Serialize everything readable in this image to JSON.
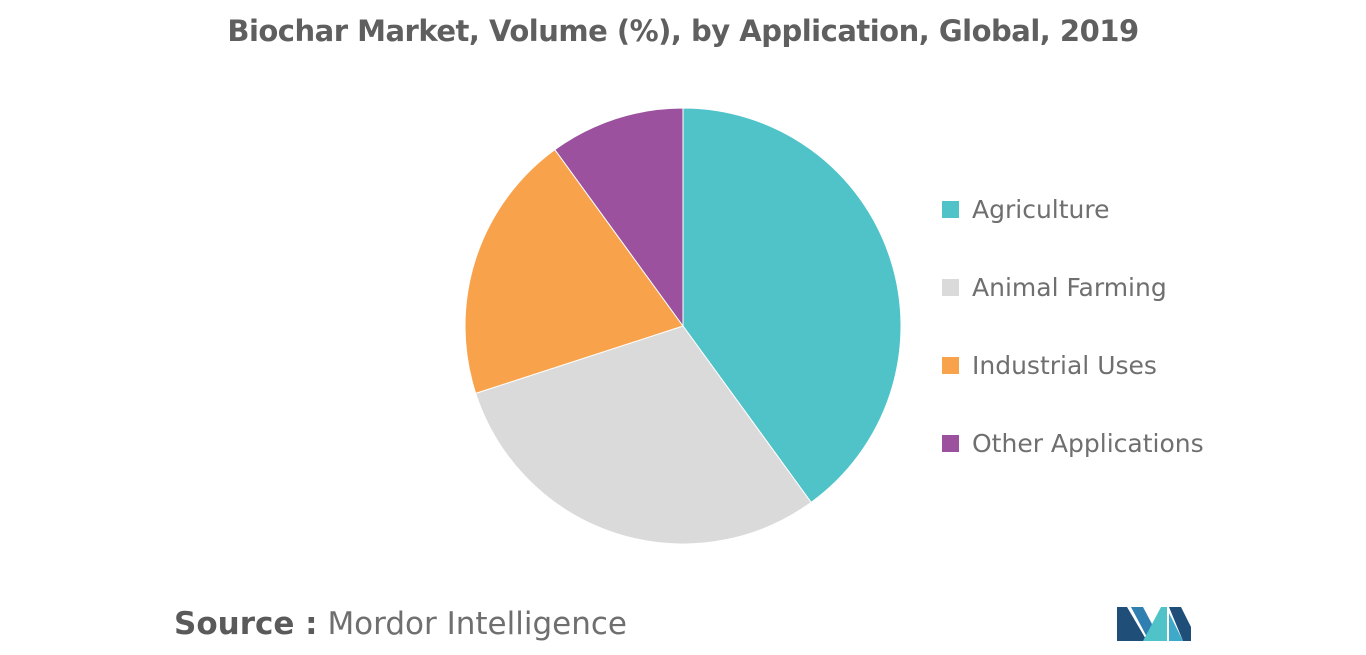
{
  "header": {
    "title": "Biochar Market, Volume (%), by Application, Global, 2019"
  },
  "chart_data": {
    "type": "pie",
    "title": "Biochar Market, Volume (%), by Application, Global, 2019",
    "start_angle_deg": 0,
    "direction": "clockwise",
    "legend_position": "right",
    "slices": [
      {
        "label": "Agriculture",
        "value": 40,
        "color": "#50c3c9"
      },
      {
        "label": "Animal Farming",
        "value": 30,
        "color": "#dadada"
      },
      {
        "label": "Industrial Uses",
        "value": 20,
        "color": "#f9a24c"
      },
      {
        "label": "Other Applications",
        "value": 10,
        "color": "#9b519e"
      }
    ]
  },
  "footer": {
    "source_prefix": "Source :",
    "source_name": "Mordor Intelligence"
  },
  "logo": {
    "name": "mordor-intelligence-logo",
    "colors": [
      "#1f4e79",
      "#3fa9c9",
      "#50c3c9"
    ]
  }
}
